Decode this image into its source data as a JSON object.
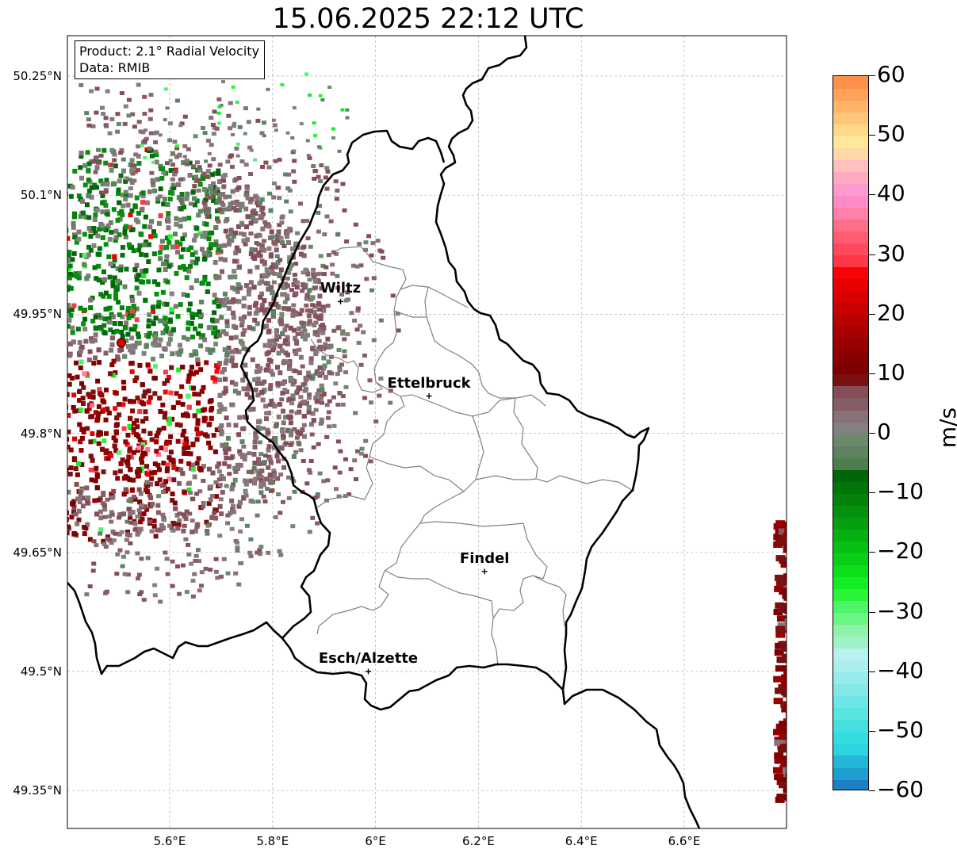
{
  "title": "15.06.2025 22:12 UTC",
  "info_box": {
    "product": "Product: 2.1° Radial Velocity",
    "data": "Data: RMIB"
  },
  "map": {
    "lon_range": [
      5.4,
      6.8
    ],
    "lat_range": [
      49.3,
      50.3
    ],
    "lat_ticks": [
      {
        "value": 50.25,
        "label": "50.25°N"
      },
      {
        "value": 50.1,
        "label": "50.1°N"
      },
      {
        "value": 49.95,
        "label": "49.95°N"
      },
      {
        "value": 49.8,
        "label": "49.8°N"
      },
      {
        "value": 49.65,
        "label": "49.65°N"
      },
      {
        "value": 49.5,
        "label": "49.5°N"
      },
      {
        "value": 49.35,
        "label": "49.35°N"
      }
    ],
    "lon_ticks": [
      {
        "value": 5.6,
        "label": "5.6°E"
      },
      {
        "value": 5.8,
        "label": "5.8°E"
      },
      {
        "value": 6.0,
        "label": "6°E"
      },
      {
        "value": 6.2,
        "label": "6.2°E"
      },
      {
        "value": 6.4,
        "label": "6.4°E"
      },
      {
        "value": 6.6,
        "label": "6.6°E"
      }
    ],
    "gridlines": true,
    "radar_site": {
      "lon": 5.506,
      "lat": 49.914,
      "color": "#e00000"
    },
    "cities": [
      {
        "name": "Wiltz",
        "lon": 5.932,
        "lat": 49.966
      },
      {
        "name": "Ettelbruck",
        "lon": 6.104,
        "lat": 49.847
      },
      {
        "name": "Findel",
        "lon": 6.212,
        "lat": 49.626
      },
      {
        "name": "Esch/Alzette",
        "lon": 5.986,
        "lat": 49.5
      }
    ]
  },
  "colorbar": {
    "unit": "m/s",
    "range": [
      -60,
      60
    ],
    "ticks": [
      {
        "value": 60,
        "label": "60"
      },
      {
        "value": 50,
        "label": "50"
      },
      {
        "value": 40,
        "label": "40"
      },
      {
        "value": 30,
        "label": "30"
      },
      {
        "value": 20,
        "label": "20"
      },
      {
        "value": 10,
        "label": "10"
      },
      {
        "value": 0,
        "label": "0"
      },
      {
        "value": -10,
        "label": "−10"
      },
      {
        "value": -20,
        "label": "−20"
      },
      {
        "value": -30,
        "label": "−30"
      },
      {
        "value": -40,
        "label": "−40"
      },
      {
        "value": -50,
        "label": "−50"
      },
      {
        "value": -60,
        "label": "−60"
      }
    ],
    "bands": [
      {
        "from": -60,
        "to": -58,
        "color": "#1f7fc6"
      },
      {
        "from": -58,
        "to": -56,
        "color": "#1f9fcf"
      },
      {
        "from": -56,
        "to": -54,
        "color": "#23b6d8"
      },
      {
        "from": -54,
        "to": -52,
        "color": "#2bd6e0"
      },
      {
        "from": -52,
        "to": -50,
        "color": "#33dde0"
      },
      {
        "from": -50,
        "to": -48,
        "color": "#45dfe0"
      },
      {
        "from": -48,
        "to": -46,
        "color": "#5ae3e3"
      },
      {
        "from": -46,
        "to": -44,
        "color": "#6de6e6"
      },
      {
        "from": -44,
        "to": -42,
        "color": "#84e8e8"
      },
      {
        "from": -42,
        "to": -40,
        "color": "#97ebeb"
      },
      {
        "from": -40,
        "to": -38,
        "color": "#aaeeee"
      },
      {
        "from": -38,
        "to": -36,
        "color": "#b9f1f0"
      },
      {
        "from": -36,
        "to": -34,
        "color": "#a0f0c8"
      },
      {
        "from": -34,
        "to": -32,
        "color": "#8ff2a8"
      },
      {
        "from": -32,
        "to": -30,
        "color": "#6af586"
      },
      {
        "from": -30,
        "to": -28,
        "color": "#4ef56a"
      },
      {
        "from": -28,
        "to": -26,
        "color": "#2af43a"
      },
      {
        "from": -26,
        "to": -24,
        "color": "#12ee22"
      },
      {
        "from": -24,
        "to": -22,
        "color": "#0be01a"
      },
      {
        "from": -22,
        "to": -20,
        "color": "#08d016"
      },
      {
        "from": -20,
        "to": -18,
        "color": "#07c014"
      },
      {
        "from": -18,
        "to": -16,
        "color": "#06b012"
      },
      {
        "from": -16,
        "to": -14,
        "color": "#05a010"
      },
      {
        "from": -14,
        "to": -12,
        "color": "#05900e"
      },
      {
        "from": -12,
        "to": -10,
        "color": "#04820c"
      },
      {
        "from": -10,
        "to": -8,
        "color": "#03740a"
      },
      {
        "from": -8,
        "to": -6,
        "color": "#026608"
      },
      {
        "from": -6,
        "to": -4,
        "color": "#4e7e50"
      },
      {
        "from": -4,
        "to": -2,
        "color": "#5d8360"
      },
      {
        "from": -2,
        "to": 0,
        "color": "#6b8a6c"
      },
      {
        "from": 0,
        "to": 2,
        "color": "#858080"
      },
      {
        "from": 2,
        "to": 4,
        "color": "#887278"
      },
      {
        "from": 4,
        "to": 6,
        "color": "#865c66"
      },
      {
        "from": 6,
        "to": 8,
        "color": "#864c58"
      },
      {
        "from": 8,
        "to": 10,
        "color": "#7a1010"
      },
      {
        "from": 10,
        "to": 12,
        "color": "#7e0000"
      },
      {
        "from": 12,
        "to": 14,
        "color": "#8a0000"
      },
      {
        "from": 14,
        "to": 16,
        "color": "#980000"
      },
      {
        "from": 16,
        "to": 18,
        "color": "#a80000"
      },
      {
        "from": 18,
        "to": 20,
        "color": "#b80000"
      },
      {
        "from": 20,
        "to": 22,
        "color": "#c80000"
      },
      {
        "from": 22,
        "to": 24,
        "color": "#d80000"
      },
      {
        "from": 24,
        "to": 26,
        "color": "#e80000"
      },
      {
        "from": 26,
        "to": 28,
        "color": "#f80404"
      },
      {
        "from": 28,
        "to": 30,
        "color": "#ff3848"
      },
      {
        "from": 30,
        "to": 32,
        "color": "#ff4a5e"
      },
      {
        "from": 32,
        "to": 34,
        "color": "#ff5c72"
      },
      {
        "from": 34,
        "to": 36,
        "color": "#ff6e88"
      },
      {
        "from": 36,
        "to": 38,
        "color": "#ff80a8"
      },
      {
        "from": 38,
        "to": 40,
        "color": "#ff8cc8"
      },
      {
        "from": 40,
        "to": 42,
        "color": "#ff9ad0"
      },
      {
        "from": 42,
        "to": 44,
        "color": "#ffaac0"
      },
      {
        "from": 44,
        "to": 46,
        "color": "#ffc0c0"
      },
      {
        "from": 46,
        "to": 48,
        "color": "#ffd8a8"
      },
      {
        "from": 48,
        "to": 50,
        "color": "#ffe89a"
      },
      {
        "from": 50,
        "to": 52,
        "color": "#ffd88a"
      },
      {
        "from": 52,
        "to": 54,
        "color": "#ffc67a"
      },
      {
        "from": 54,
        "to": 56,
        "color": "#ffb46a"
      },
      {
        "from": 56,
        "to": 58,
        "color": "#ffa25a"
      },
      {
        "from": 58,
        "to": 60,
        "color": "#ff904a"
      }
    ]
  },
  "colors": {
    "border": "#000000",
    "canton_border": "#808080",
    "grid": "#b0b0b0"
  }
}
